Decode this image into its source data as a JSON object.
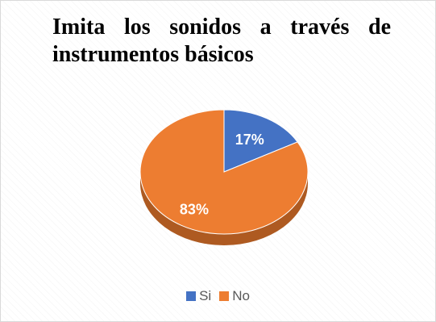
{
  "chart_data": {
    "type": "pie",
    "title": "Imita los sonidos a través de instrumentos básicos",
    "categories": [
      "Si",
      "No"
    ],
    "values": [
      17,
      83
    ],
    "data_labels": [
      "17%",
      "83%"
    ],
    "colors": [
      "#4472c4",
      "#ed7d31"
    ],
    "shading_colors": [
      "#2f528f",
      "#ae5a21"
    ],
    "label_color": "#ffffff",
    "legend_position": "bottom",
    "style": "3d"
  },
  "legend": [
    {
      "label": "Si",
      "color": "#4472c4"
    },
    {
      "label": "No",
      "color": "#ed7d31"
    }
  ]
}
